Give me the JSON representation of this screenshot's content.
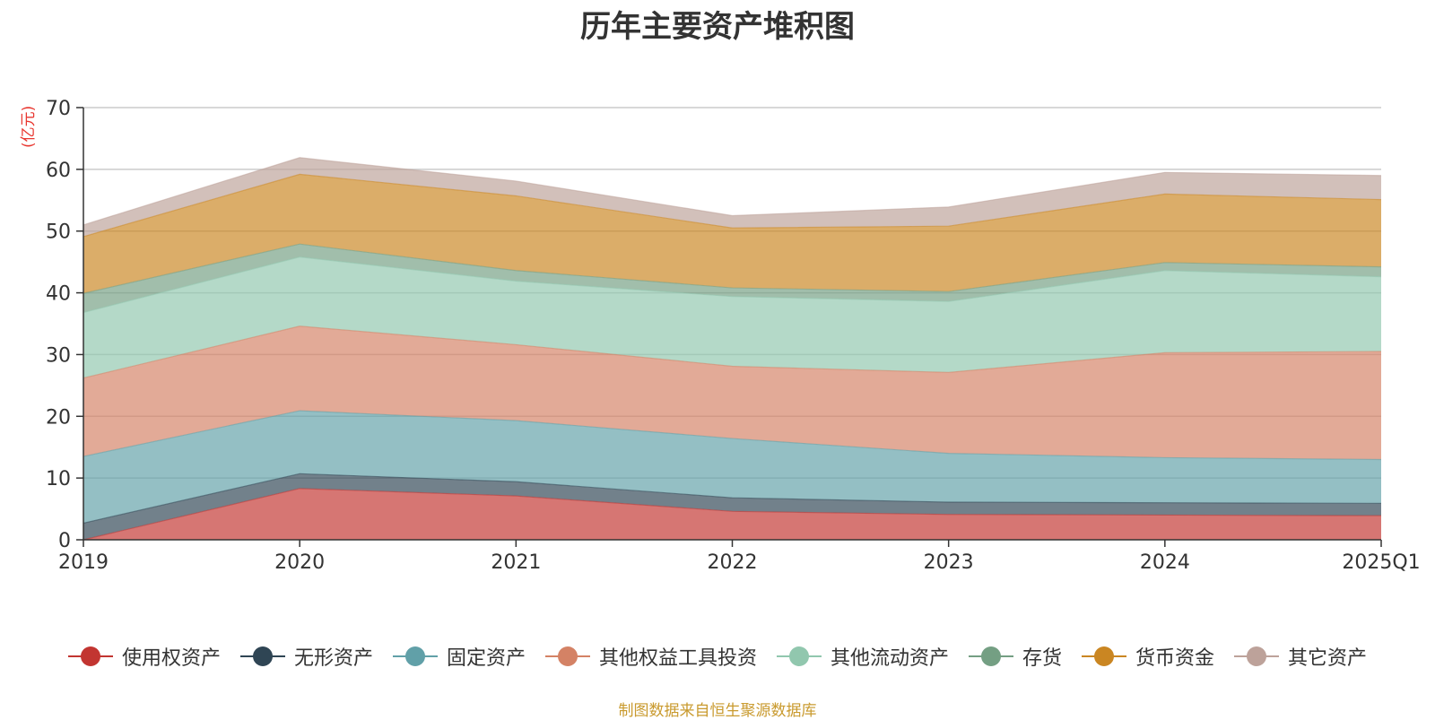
{
  "chart_data": {
    "type": "area",
    "stacked": true,
    "title": "历年主要资产堆积图",
    "unit_label": "(亿元)",
    "categories": [
      "2019",
      "2020",
      "2021",
      "2022",
      "2023",
      "2024",
      "2025Q1"
    ],
    "ylim": [
      0,
      70
    ],
    "yticks": [
      0,
      10,
      20,
      30,
      40,
      50,
      60,
      70
    ],
    "grid": true,
    "legend_position": "bottom",
    "series": [
      {
        "name": "使用权资产",
        "color": "#c23531",
        "values": [
          0.0,
          8.3,
          7.1,
          4.6,
          4.1,
          4.0,
          3.9
        ]
      },
      {
        "name": "无形资产",
        "color": "#2f4554",
        "values": [
          2.7,
          2.4,
          2.3,
          2.2,
          2.0,
          2.0,
          2.0
        ]
      },
      {
        "name": "固定资产",
        "color": "#61a0a8",
        "values": [
          10.8,
          10.2,
          9.9,
          9.6,
          7.9,
          7.3,
          7.1
        ]
      },
      {
        "name": "其他权益工具投资",
        "color": "#d48265",
        "values": [
          12.7,
          13.7,
          12.3,
          11.7,
          13.1,
          17.0,
          17.5
        ]
      },
      {
        "name": "其他流动资产",
        "color": "#91c7ae",
        "values": [
          10.6,
          11.2,
          10.3,
          11.3,
          11.5,
          13.3,
          12.1
        ]
      },
      {
        "name": "存货",
        "color": "#749f83",
        "values": [
          3.1,
          2.1,
          1.7,
          1.4,
          1.6,
          1.3,
          1.6
        ]
      },
      {
        "name": "货币资金",
        "color": "#ca8622",
        "values": [
          9.2,
          11.3,
          12.1,
          9.7,
          10.6,
          11.1,
          10.9
        ]
      },
      {
        "name": "其它资产",
        "color": "#bda29a",
        "values": [
          1.9,
          2.7,
          2.4,
          2.0,
          3.1,
          3.5,
          3.9
        ]
      }
    ]
  },
  "source_note": "制图数据来自恒生聚源数据库"
}
